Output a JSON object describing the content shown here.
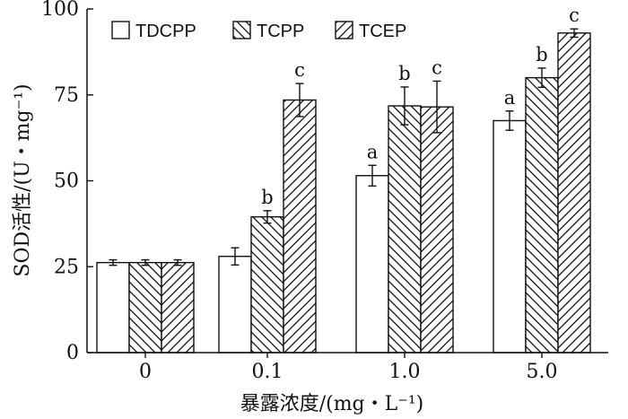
{
  "chart_data": {
    "type": "bar",
    "categories": [
      "0",
      "0.1",
      "1.0",
      "5.0"
    ],
    "series": [
      {
        "name": "TDCPP",
        "pattern": "none",
        "values": [
          26.2,
          28.0,
          51.5,
          67.5
        ],
        "errors": [
          0.8,
          2.5,
          3.0,
          2.8
        ],
        "letters": [
          "",
          "",
          "a",
          "a"
        ]
      },
      {
        "name": "TCPP",
        "pattern": "back-hatch",
        "values": [
          26.2,
          39.5,
          71.8,
          80.0
        ],
        "errors": [
          0.8,
          1.8,
          5.5,
          2.8
        ],
        "letters": [
          "",
          "b",
          "b",
          "b"
        ]
      },
      {
        "name": "TCEP",
        "pattern": "forward-hatch",
        "values": [
          26.2,
          73.5,
          71.5,
          93.0
        ],
        "errors": [
          0.8,
          4.8,
          7.5,
          1.2
        ],
        "letters": [
          "",
          "c",
          "c",
          "c"
        ]
      }
    ],
    "ylabel": "SOD活性/(U・mg⁻¹)",
    "xlabel": "暴露浓度/(mg・L⁻¹)",
    "ylim": [
      0,
      100
    ],
    "yticks": [
      "0",
      "25",
      "50",
      "75",
      "100"
    ],
    "legend_position": "top-left",
    "grid": false,
    "colors": {
      "bar_fill": "#ffffff",
      "stroke": "#111111"
    }
  }
}
